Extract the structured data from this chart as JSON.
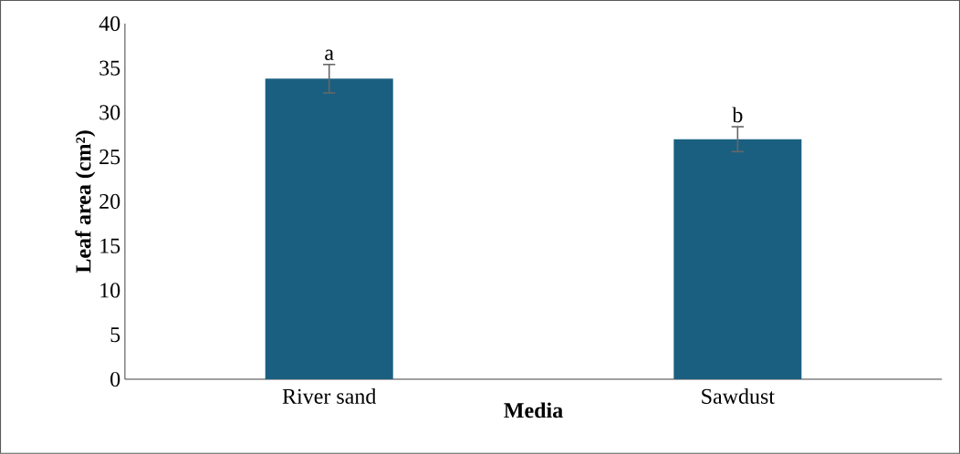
{
  "chart_data": {
    "type": "bar",
    "xlabel": "Media",
    "ylabel": "Leaf area (cm²)",
    "categories": [
      "River sand",
      "Sawdust"
    ],
    "values": [
      33.8,
      27.0
    ],
    "errors": [
      1.6,
      1.4
    ],
    "color": "#1a5f80",
    "ylim": [
      0,
      40
    ],
    "yticks": [
      0,
      5,
      10,
      15,
      20,
      25,
      30,
      35,
      40
    ],
    "grid": false,
    "annotations": [
      {
        "text": "a",
        "x": "River sand",
        "y": 35.4
      },
      {
        "text": "b",
        "x": "Sawdust",
        "y": 28.4
      }
    ]
  }
}
